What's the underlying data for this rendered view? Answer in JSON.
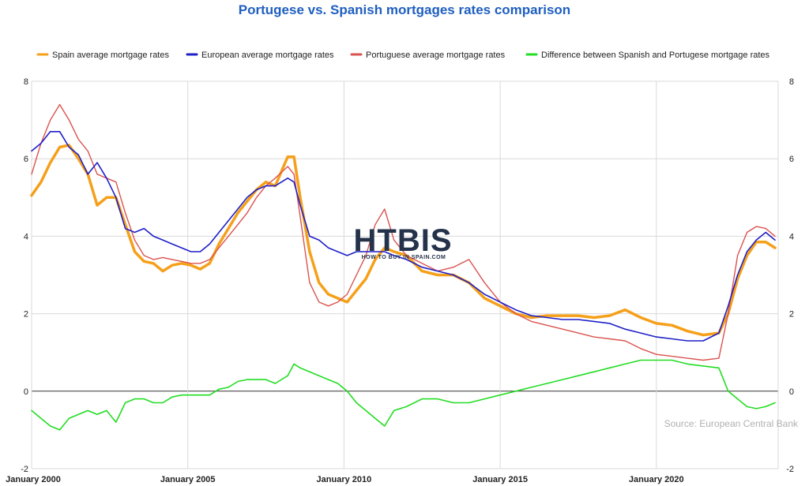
{
  "chart_data": {
    "type": "line",
    "title": "Portugese vs. Spanish mortgages rates comparison",
    "ylim": [
      -2,
      8
    ],
    "y_ticks": [
      "-2",
      "0",
      "2",
      "4",
      "6",
      "8"
    ],
    "x_ticks": [
      "January 2000",
      "January 2005",
      "January 2010",
      "January 2015",
      "January 2020"
    ],
    "xlim": [
      2000.0,
      2023.9
    ],
    "grid": true,
    "legend_position": "top",
    "source": "Source: European Central Bank",
    "logo": {
      "text": "HTBIS",
      "tagline": "HOW TO BUY IN SPAIN.COM"
    },
    "series": [
      {
        "name": "Spain average mortgage rates",
        "color": "#f5a01a",
        "x": [
          2000.0,
          2000.3,
          2000.6,
          2000.9,
          2001.2,
          2001.5,
          2001.8,
          2002.1,
          2002.4,
          2002.7,
          2003.0,
          2003.3,
          2003.6,
          2003.9,
          2004.2,
          2004.5,
          2004.8,
          2005.1,
          2005.4,
          2005.7,
          2006.0,
          2006.3,
          2006.6,
          2006.9,
          2007.2,
          2007.5,
          2007.8,
          2008.2,
          2008.4,
          2008.6,
          2008.9,
          2009.2,
          2009.5,
          2009.8,
          2010.1,
          2010.4,
          2010.7,
          2011.0,
          2011.3,
          2011.6,
          2012.0,
          2012.5,
          2013.0,
          2013.5,
          2014.0,
          2014.5,
          2015.0,
          2015.5,
          2016.0,
          2016.5,
          2017.0,
          2017.5,
          2018.0,
          2018.5,
          2019.0,
          2019.5,
          2020.0,
          2020.5,
          2021.0,
          2021.5,
          2022.0,
          2022.3,
          2022.6,
          2022.9,
          2023.2,
          2023.5,
          2023.8
        ],
        "y": [
          5.05,
          5.4,
          5.9,
          6.3,
          6.35,
          6.0,
          5.6,
          4.8,
          5.0,
          5.0,
          4.3,
          3.6,
          3.35,
          3.3,
          3.1,
          3.25,
          3.3,
          3.25,
          3.15,
          3.3,
          3.8,
          4.2,
          4.6,
          4.9,
          5.2,
          5.4,
          5.3,
          6.05,
          6.05,
          5.0,
          3.6,
          2.8,
          2.5,
          2.4,
          2.3,
          2.6,
          2.9,
          3.4,
          3.7,
          3.6,
          3.5,
          3.1,
          3.0,
          3.0,
          2.8,
          2.4,
          2.2,
          2.0,
          1.9,
          1.95,
          1.95,
          1.95,
          1.9,
          1.95,
          2.1,
          1.9,
          1.75,
          1.7,
          1.55,
          1.45,
          1.5,
          2.0,
          2.9,
          3.5,
          3.85,
          3.85,
          3.7
        ]
      },
      {
        "name": "European average mortgage rates",
        "color": "#1f1fc8",
        "x": [
          2000.0,
          2000.3,
          2000.6,
          2000.9,
          2001.2,
          2001.5,
          2001.8,
          2002.1,
          2002.4,
          2002.7,
          2003.0,
          2003.3,
          2003.6,
          2003.9,
          2004.2,
          2004.5,
          2004.8,
          2005.1,
          2005.4,
          2005.7,
          2006.0,
          2006.3,
          2006.6,
          2006.9,
          2007.2,
          2007.5,
          2007.8,
          2008.2,
          2008.4,
          2008.6,
          2008.9,
          2009.2,
          2009.5,
          2009.8,
          2010.1,
          2010.4,
          2010.7,
          2011.0,
          2011.3,
          2011.6,
          2012.0,
          2012.5,
          2013.0,
          2013.5,
          2014.0,
          2014.5,
          2015.0,
          2015.5,
          2016.0,
          2016.5,
          2017.0,
          2017.5,
          2018.0,
          2018.5,
          2019.0,
          2019.5,
          2020.0,
          2020.5,
          2021.0,
          2021.5,
          2022.0,
          2022.3,
          2022.6,
          2022.9,
          2023.2,
          2023.5,
          2023.8
        ],
        "y": [
          6.2,
          6.4,
          6.7,
          6.7,
          6.3,
          6.1,
          5.6,
          5.9,
          5.5,
          5.0,
          4.2,
          4.1,
          4.2,
          4.0,
          3.9,
          3.8,
          3.7,
          3.6,
          3.6,
          3.8,
          4.1,
          4.4,
          4.7,
          5.0,
          5.2,
          5.3,
          5.3,
          5.5,
          5.4,
          4.8,
          4.0,
          3.9,
          3.7,
          3.6,
          3.5,
          3.6,
          3.6,
          3.6,
          3.6,
          3.5,
          3.4,
          3.2,
          3.1,
          3.0,
          2.8,
          2.5,
          2.3,
          2.1,
          1.95,
          1.9,
          1.85,
          1.85,
          1.8,
          1.75,
          1.6,
          1.5,
          1.4,
          1.35,
          1.3,
          1.3,
          1.5,
          2.2,
          3.0,
          3.6,
          3.9,
          4.1,
          3.9
        ]
      },
      {
        "name": "Portuguese average mortgage rates",
        "color": "#d9534f",
        "x": [
          2000.0,
          2000.3,
          2000.6,
          2000.9,
          2001.2,
          2001.5,
          2001.8,
          2002.1,
          2002.4,
          2002.7,
          2003.0,
          2003.3,
          2003.6,
          2003.9,
          2004.2,
          2004.5,
          2004.8,
          2005.1,
          2005.4,
          2005.7,
          2006.0,
          2006.3,
          2006.6,
          2006.9,
          2007.2,
          2007.5,
          2007.8,
          2008.2,
          2008.4,
          2008.6,
          2008.9,
          2009.2,
          2009.5,
          2009.8,
          2010.1,
          2010.4,
          2010.7,
          2011.0,
          2011.3,
          2011.6,
          2012.0,
          2012.5,
          2013.0,
          2013.5,
          2014.0,
          2014.5,
          2015.0,
          2015.5,
          2016.0,
          2016.5,
          2017.0,
          2017.5,
          2018.0,
          2018.5,
          2019.0,
          2019.5,
          2020.0,
          2020.5,
          2021.0,
          2021.5,
          2022.0,
          2022.3,
          2022.6,
          2022.9,
          2023.2,
          2023.5,
          2023.8
        ],
        "y": [
          5.6,
          6.4,
          7.0,
          7.4,
          7.0,
          6.5,
          6.2,
          5.6,
          5.5,
          5.4,
          4.6,
          3.9,
          3.5,
          3.4,
          3.45,
          3.4,
          3.35,
          3.3,
          3.3,
          3.4,
          3.7,
          4.0,
          4.3,
          4.6,
          5.0,
          5.3,
          5.5,
          5.8,
          5.6,
          4.5,
          2.8,
          2.3,
          2.2,
          2.3,
          2.5,
          3.0,
          3.5,
          4.3,
          4.7,
          3.9,
          3.5,
          3.3,
          3.1,
          3.2,
          3.4,
          2.8,
          2.3,
          2.0,
          1.8,
          1.7,
          1.6,
          1.5,
          1.4,
          1.35,
          1.3,
          1.1,
          0.95,
          0.9,
          0.85,
          0.8,
          0.85,
          2.0,
          3.5,
          4.1,
          4.25,
          4.2,
          4.0
        ]
      },
      {
        "name": "Difference between Spanish and Portugese mortgage rates",
        "color": "#22dd22",
        "x": [
          2000.0,
          2000.3,
          2000.6,
          2000.9,
          2001.2,
          2001.5,
          2001.8,
          2002.1,
          2002.4,
          2002.7,
          2003.0,
          2003.3,
          2003.6,
          2003.9,
          2004.2,
          2004.5,
          2004.8,
          2005.1,
          2005.4,
          2005.7,
          2006.0,
          2006.3,
          2006.6,
          2006.9,
          2007.2,
          2007.5,
          2007.8,
          2008.2,
          2008.4,
          2008.6,
          2008.9,
          2009.2,
          2009.5,
          2009.8,
          2010.1,
          2010.4,
          2010.7,
          2011.0,
          2011.3,
          2011.6,
          2012.0,
          2012.5,
          2013.0,
          2013.5,
          2014.0,
          2014.5,
          2015.0,
          2015.5,
          2016.0,
          2016.5,
          2017.0,
          2017.5,
          2018.0,
          2018.5,
          2019.0,
          2019.5,
          2020.0,
          2020.5,
          2021.0,
          2021.5,
          2022.0,
          2022.3,
          2022.6,
          2022.9,
          2023.2,
          2023.5,
          2023.8
        ],
        "y": [
          -0.5,
          -0.7,
          -0.9,
          -1.0,
          -0.7,
          -0.6,
          -0.5,
          -0.6,
          -0.5,
          -0.8,
          -0.3,
          -0.2,
          -0.2,
          -0.3,
          -0.3,
          -0.15,
          -0.1,
          -0.1,
          -0.1,
          -0.1,
          0.05,
          0.1,
          0.25,
          0.3,
          0.3,
          0.3,
          0.2,
          0.4,
          0.7,
          0.6,
          0.5,
          0.4,
          0.3,
          0.2,
          0.0,
          -0.3,
          -0.5,
          -0.7,
          -0.9,
          -0.5,
          -0.4,
          -0.2,
          -0.2,
          -0.3,
          -0.3,
          -0.2,
          -0.1,
          0.0,
          0.1,
          0.2,
          0.3,
          0.4,
          0.5,
          0.6,
          0.7,
          0.8,
          0.8,
          0.8,
          0.7,
          0.65,
          0.6,
          0.0,
          -0.2,
          -0.4,
          -0.45,
          -0.4,
          -0.3
        ]
      }
    ]
  }
}
